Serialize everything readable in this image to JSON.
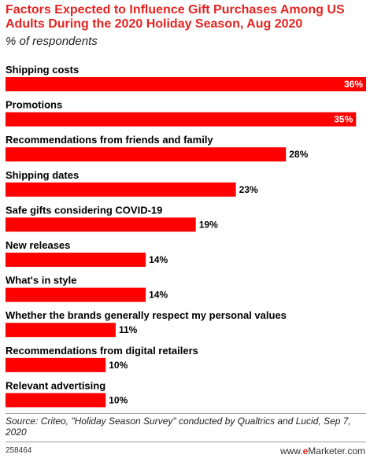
{
  "chart_data": {
    "type": "bar",
    "orientation": "horizontal",
    "title": "Factors Expected to Influence Gift Purchases Among US Adults During the 2020 Holiday Season, Aug 2020",
    "subtitle": "% of respondents",
    "categories": [
      "Shipping costs",
      "Promotions",
      "Recommendations from friends and family",
      "Shipping dates",
      "Safe gifts considering COVID-19",
      "New releases",
      "What's in style",
      "Whether the brands generally respect my personal values",
      "Recommendations from digital retailers",
      "Relevant advertising"
    ],
    "values": [
      36,
      35,
      28,
      23,
      19,
      14,
      14,
      11,
      10,
      10
    ],
    "value_labels": [
      "36%",
      "35%",
      "28%",
      "23%",
      "19%",
      "14%",
      "14%",
      "11%",
      "10%",
      "10%"
    ],
    "xlim": [
      0,
      36
    ],
    "grid": false,
    "bar_color": "#ff0000"
  },
  "footer": {
    "source": "Source: Criteo, \"Holiday Season Survey\" conducted by Qualtrics and Lucid, Sep 7, 2020",
    "chart_id": "258464",
    "brand_prefix": "e",
    "brand_name": "Marketer",
    "brand_suffix": ".com"
  }
}
